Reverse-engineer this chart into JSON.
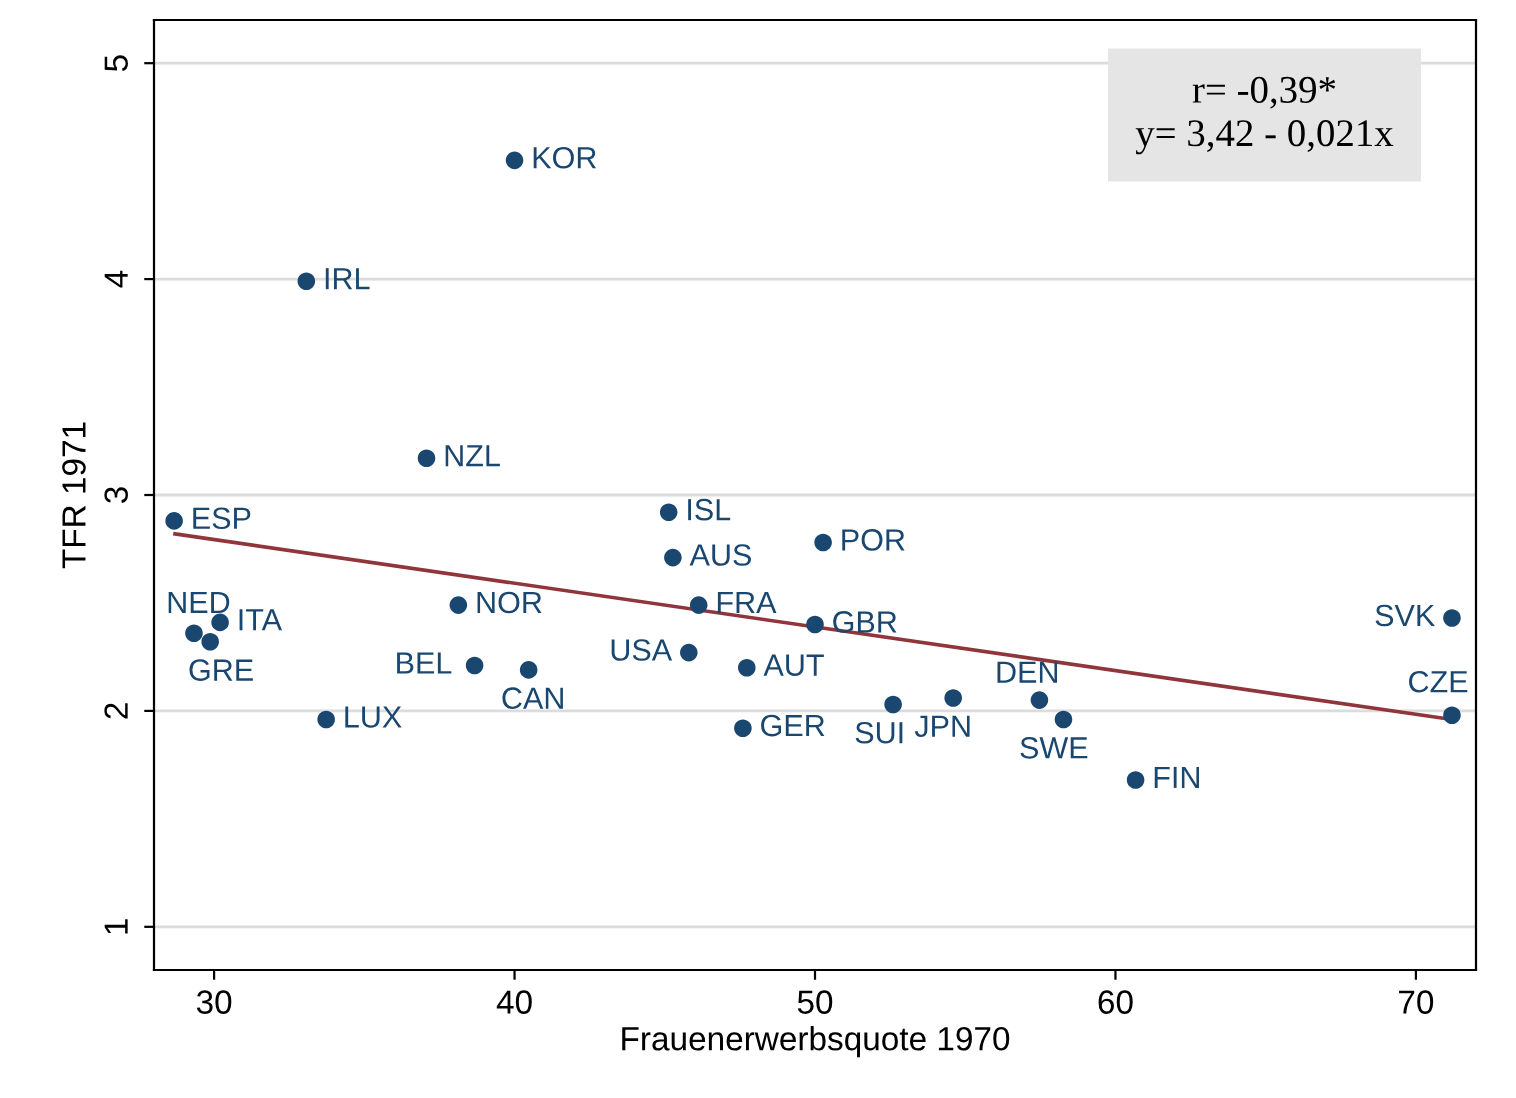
{
  "chart_data": {
    "type": "scatter",
    "xlabel": "Frauenerwerbsquote 1970",
    "ylabel": "TFR 1971",
    "xlim": [
      28,
      72
    ],
    "ylim": [
      0.8,
      5.2
    ],
    "xticks": [
      30,
      40,
      50,
      60,
      70
    ],
    "yticks": [
      1,
      2,
      3,
      4,
      5
    ],
    "grid": "y",
    "series": [
      {
        "marker": "circle",
        "color": "#1a476f",
        "x": [
          40.0,
          33.07,
          37.07,
          28.67,
          45.13,
          45.27,
          50.27,
          38.13,
          46.13,
          50.0,
          29.33,
          30.2,
          29.87,
          38.67,
          40.47,
          45.8,
          47.73,
          33.73,
          47.6,
          52.6,
          54.6,
          57.47,
          58.27,
          60.67,
          71.2,
          71.2
        ],
        "values": [
          4.55,
          3.99,
          3.17,
          2.88,
          2.92,
          2.71,
          2.78,
          2.49,
          2.49,
          2.4,
          2.36,
          2.41,
          2.32,
          2.21,
          2.19,
          2.27,
          2.2,
          1.96,
          1.92,
          2.03,
          2.06,
          2.05,
          1.96,
          1.68,
          2.43,
          1.98
        ]
      },
      {
        "type": "line",
        "marker": "none",
        "color": "#90353b",
        "x": [
          28.7,
          71.2
        ],
        "values": [
          2.82,
          1.96
        ]
      }
    ],
    "annotations": [
      {
        "text": "KOR",
        "x": 40.0,
        "y": 4.55
      },
      {
        "text": "IRL",
        "x": 33.07,
        "y": 3.99
      },
      {
        "text": "NZL",
        "x": 37.07,
        "y": 3.17
      },
      {
        "text": "ESP",
        "x": 28.67,
        "y": 2.88
      },
      {
        "text": "ISL",
        "x": 45.13,
        "y": 2.92
      },
      {
        "text": "AUS",
        "x": 45.27,
        "y": 2.71
      },
      {
        "text": "POR",
        "x": 50.27,
        "y": 2.78
      },
      {
        "text": "NOR",
        "x": 38.13,
        "y": 2.49
      },
      {
        "text": "FRA",
        "x": 46.13,
        "y": 2.49
      },
      {
        "text": "GBR",
        "x": 50.0,
        "y": 2.4
      },
      {
        "text": "NED",
        "x": 29.33,
        "y": 2.36
      },
      {
        "text": "ITA",
        "x": 30.2,
        "y": 2.41
      },
      {
        "text": "GRE",
        "x": 29.87,
        "y": 2.32
      },
      {
        "text": "BEL",
        "x": 38.67,
        "y": 2.21
      },
      {
        "text": "CAN",
        "x": 40.47,
        "y": 2.19
      },
      {
        "text": "USA",
        "x": 45.8,
        "y": 2.27
      },
      {
        "text": "AUT",
        "x": 47.73,
        "y": 2.2
      },
      {
        "text": "LUX",
        "x": 33.73,
        "y": 1.96
      },
      {
        "text": "GER",
        "x": 47.6,
        "y": 1.92
      },
      {
        "text": "SUI",
        "x": 52.6,
        "y": 2.03
      },
      {
        "text": "JPN",
        "x": 54.6,
        "y": 2.06
      },
      {
        "text": "DEN",
        "x": 57.47,
        "y": 2.05
      },
      {
        "text": "SWE",
        "x": 58.27,
        "y": 1.96
      },
      {
        "text": "FIN",
        "x": 60.67,
        "y": 1.68
      },
      {
        "text": "SVK",
        "x": 71.2,
        "y": 2.43
      },
      {
        "text": "CZE",
        "x": 71.2,
        "y": 1.98
      },
      "r= -0,39*\ny= 3,42 - 0,021x"
    ]
  }
}
